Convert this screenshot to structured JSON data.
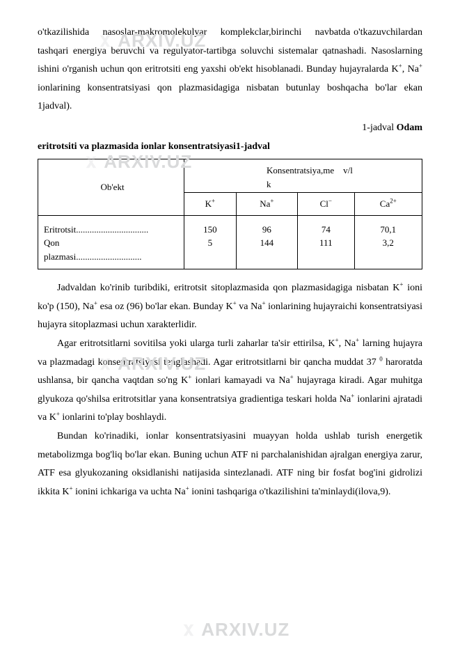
{
  "watermark": {
    "text": "ARXIV.UZ"
  },
  "para1_html": "o'tkazilishida&nbsp;&nbsp;&nbsp;&nbsp;nasoslar-makromolekulyar&nbsp;&nbsp;&nbsp;&nbsp;komplekclar,birinchi&nbsp;&nbsp;&nbsp;&nbsp;navbatda o'tkazuvchilardan tashqari energiya beruvchi va regulyator-tartibga soluvchi sistemalar qatnashadi. Nasoslarning ishini o'rganish uchun qon eritrotsiti eng yaxshi ob'ekt hisoblanadi. Bunday hujayralarda K<sup>+</sup>, Na<sup>+</sup> ionlarining konsentratsiyasi qon plazmasidagiga nisbatan butunlay boshqacha bo'lar ekan 1jadval).",
  "table_label_html": "1-jadval <span class=\"bold\">Odam</span>",
  "table_title": "eritrotsiti va plazmasida ionlar konsentratsiyasi1-jadval",
  "table": {
    "obj_header": "Ob'ekt",
    "konsen_l1": "Konsentratsiya,me",
    "konsen_l2": "v/l",
    "konsen_l3": "k",
    "ions": {
      "k": "K",
      "na": "Na",
      "cl": "Cl",
      "ca": "Ca"
    },
    "ion_sup": {
      "plus": "+",
      "minus": "−",
      "two_plus": "2+"
    },
    "row_labels_html": "Eritrotsit................................<br>Qon<br>plazmasi.............................",
    "vals": {
      "k": "150<br>5",
      "na": "96<br>144",
      "cl": "74<br>111",
      "ca": "70,1<br>3,2"
    }
  },
  "para2_html": "Jadvaldan ko'rinib turibdiki, eritrotsit sitoplazmasida qon plazmasidagiga nisbatan K<sup>+</sup> ioni ko'p (150), Na<sup>+</sup> esa oz (96) bo'lar ekan. Bunday K<sup>+</sup> va Na<sup>+</sup> ionlarining hujayraichi konsentratsiyasi hujayra sitoplazmasi uchun xarakterlidir.",
  "para3_html": "Agar eritrotsitlarni sovitilsa yoki ularga turli zaharlar ta'sir ettirilsa, K<sup>+</sup>, Na<sup>+</sup> larning hujayra va plazmadagi konsentratsiyasi tenglashadi. Agar eritrotsitlarni bir qancha muddat 37 <sup>0</sup> haroratda ushlansa, bir qancha vaqtdan so'ng K<sup>+</sup> ionlari kamayadi va Na<sup>+</sup> hujayraga kiradi. Agar muhitga glyukoza qo'shilsa eritrotsitlar yana konsentratsiya gradientiga teskari holda Na<sup>+</sup> ionlarini ajratadi va K<sup>+</sup> ionlarini to'play boshlaydi.",
  "para4_html": "Bundan ko'rinadiki, ionlar konsentratsiyasini muayyan holda ushlab turish energetik metabolizmga bog'liq bo'lar ekan. Buning uchun ATF ni parchalanishidan ajralgan energiya zarur, ATF esa glyukozaning oksidlanishi natijasida sintezlanadi. ATF ning bir fosfat bog'ini gidrolizi ikkita K<sup>+</sup> ionini ichkariga va uchta Na<sup>+</sup> ionini tashqariga o'tkazilishini ta'minlaydi(ilova,9)."
}
